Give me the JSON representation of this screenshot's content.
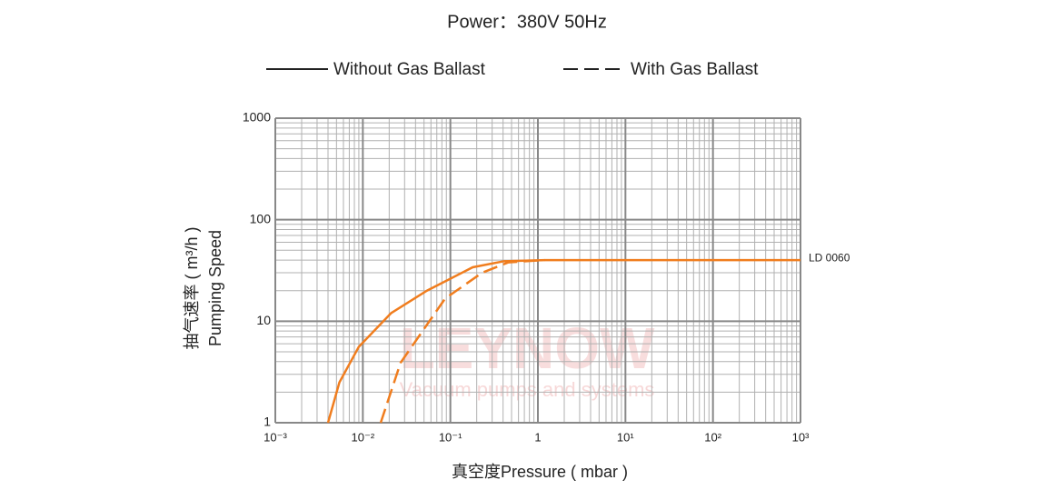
{
  "chart_data": {
    "type": "line",
    "title": "Power：380V 50Hz",
    "x_label": "真空度Pressure ( mbar )",
    "y_label": [
      "抽气速率 ( m³/h )",
      "Pumping Speed"
    ],
    "annotation": "LD 0060",
    "watermark": [
      "LEYNOW",
      "Vacuum pumps and systems"
    ],
    "log_x": true,
    "log_y": true,
    "grid": true,
    "minor_grid": true,
    "xlim": [
      0.001,
      1000
    ],
    "ylim": [
      1,
      1000
    ],
    "xticks": [
      {
        "value": 0.001,
        "label": "10⁻³"
      },
      {
        "value": 0.01,
        "label": "10⁻²"
      },
      {
        "value": 0.1,
        "label": "10⁻¹"
      },
      1,
      {
        "value": 10,
        "label": "10¹"
      },
      {
        "value": 100,
        "label": "10²"
      },
      {
        "value": 1000,
        "label": "10³"
      }
    ],
    "yticks": [
      1,
      10,
      100,
      1000
    ],
    "series": [
      {
        "name": "Without Gas Ballast",
        "color": "#f07d1e",
        "dash": false,
        "x": [
          0.004,
          0.0054,
          0.009,
          0.021,
          0.054,
          0.18,
          0.41,
          1.2,
          1000
        ],
        "values": [
          1,
          2.5,
          5.6,
          12,
          20,
          34,
          39,
          40,
          40
        ]
      },
      {
        "name": "With Gas Ballast",
        "color": "#f07d1e",
        "dash": true,
        "x": [
          0.016,
          0.027,
          0.087,
          0.23,
          0.46,
          1.2
        ],
        "values": [
          1,
          3.9,
          16.7,
          30,
          38,
          40
        ]
      }
    ]
  }
}
